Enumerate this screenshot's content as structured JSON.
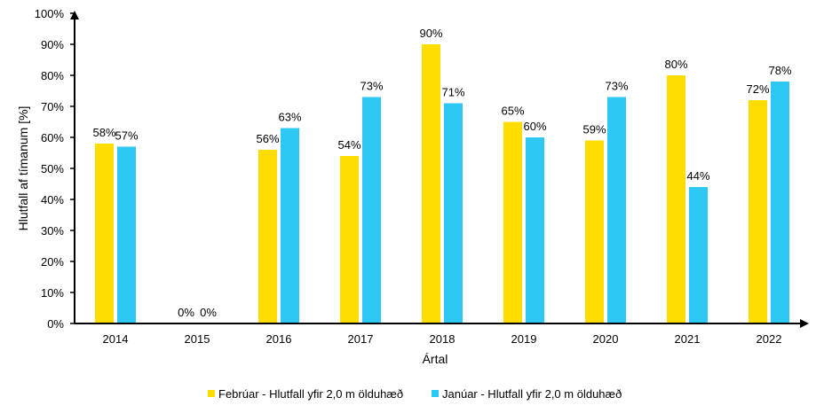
{
  "chart_data": {
    "type": "bar",
    "title": "",
    "xlabel": "Ártal",
    "ylabel": "Hlutfall af tímanum [%]",
    "ylim": [
      0,
      100
    ],
    "yticks": [
      "0%",
      "10%",
      "20%",
      "30%",
      "40%",
      "50%",
      "60%",
      "70%",
      "80%",
      "90%",
      "100%"
    ],
    "grid": false,
    "legend_position": "bottom",
    "categories": [
      "2014",
      "2015",
      "2016",
      "2017",
      "2018",
      "2019",
      "2020",
      "2021",
      "2022"
    ],
    "series": [
      {
        "name": "Febrúar - Hlutfall yfir 2,0 m ölduhæð",
        "color": "#FFDD00",
        "values": [
          58,
          0,
          56,
          54,
          90,
          65,
          59,
          80,
          72
        ],
        "labels": [
          "58%",
          "0%",
          "56%",
          "54%",
          "90%",
          "65%",
          "59%",
          "80%",
          "72%"
        ]
      },
      {
        "name": "Janúar - Hlutfall yfir 2,0 m ölduhæð",
        "color": "#2EC8F5",
        "values": [
          57,
          0,
          63,
          73,
          71,
          60,
          73,
          44,
          78
        ],
        "labels": [
          "57%",
          "0%",
          "63%",
          "73%",
          "71%",
          "60%",
          "73%",
          "44%",
          "78%"
        ]
      }
    ]
  }
}
